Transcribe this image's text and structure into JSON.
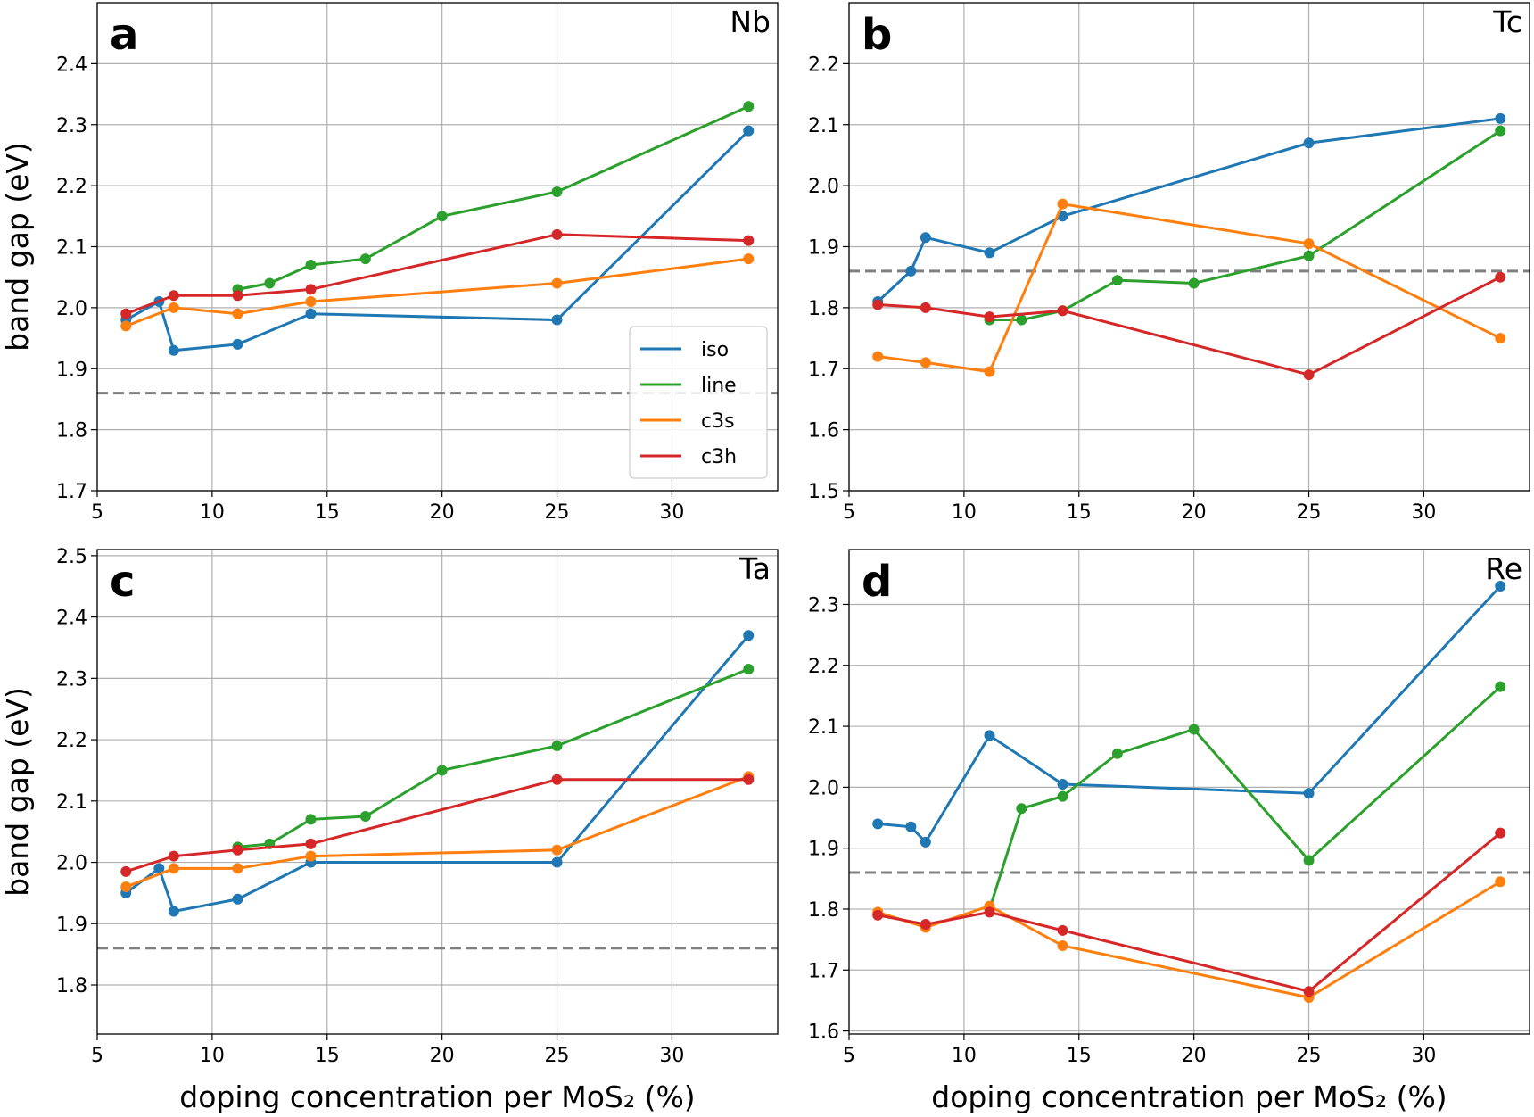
{
  "chart_data": [
    {
      "type": "line",
      "letter": "a",
      "element": "Nb",
      "ylabel": "band gap (eV)",
      "xlim": [
        5,
        34.6
      ],
      "xticks": [
        5,
        10,
        15,
        20,
        25,
        30
      ],
      "ylim": [
        1.7,
        2.5
      ],
      "yticks": [
        1.7,
        1.8,
        1.9,
        {
          "value": 2,
          "label": "2.0"
        },
        2.1,
        2.2,
        2.3,
        2.4
      ],
      "grid": true,
      "hline": 1.86,
      "legend": "lower right",
      "series": [
        {
          "name": "iso",
          "color": "#1f77b4",
          "x": [
            6.25,
            7.69,
            8.33,
            11.11,
            14.29,
            25,
            33.33
          ],
          "values": [
            1.98,
            2.01,
            1.93,
            1.94,
            1.99,
            1.98,
            2.29
          ]
        },
        {
          "name": "line",
          "color": "#2ca02c",
          "x": [
            11.11,
            12.5,
            14.29,
            16.67,
            20,
            25,
            33.33
          ],
          "values": [
            2.03,
            2.04,
            2.07,
            2.08,
            2.15,
            2.19,
            2.33
          ]
        },
        {
          "name": "c3s",
          "color": "#ff7f0e",
          "x": [
            6.25,
            8.33,
            11.11,
            14.29,
            25,
            33.33
          ],
          "values": [
            1.97,
            2.0,
            1.99,
            2.01,
            2.04,
            2.08
          ]
        },
        {
          "name": "c3h",
          "color": "#d62728",
          "x": [
            6.25,
            8.33,
            11.11,
            14.29,
            25,
            33.33
          ],
          "values": [
            1.99,
            2.02,
            2.02,
            2.03,
            2.12,
            2.11
          ]
        }
      ]
    },
    {
      "type": "line",
      "letter": "b",
      "element": "Tc",
      "xlim": [
        5,
        34.6
      ],
      "xticks": [
        5,
        10,
        15,
        20,
        25,
        30
      ],
      "ylim": [
        1.5,
        2.3
      ],
      "yticks": [
        1.5,
        1.6,
        1.7,
        1.8,
        1.9,
        {
          "value": 2,
          "label": "2.0"
        },
        2.1,
        2.2
      ],
      "grid": true,
      "hline": 1.86,
      "series": [
        {
          "color": "#1f77b4",
          "x": [
            6.25,
            7.69,
            8.33,
            11.11,
            14.29,
            25,
            33.33
          ],
          "values": [
            1.81,
            1.86,
            1.915,
            1.89,
            1.95,
            2.07,
            2.11
          ]
        },
        {
          "color": "#2ca02c",
          "x": [
            11.11,
            12.5,
            14.29,
            16.67,
            20,
            25,
            33.33
          ],
          "values": [
            1.78,
            1.78,
            1.795,
            1.845,
            1.84,
            1.885,
            2.09
          ]
        },
        {
          "color": "#ff7f0e",
          "x": [
            6.25,
            8.33,
            11.11,
            14.29,
            25,
            33.33
          ],
          "values": [
            1.72,
            1.71,
            1.695,
            1.97,
            1.905,
            1.75
          ]
        },
        {
          "color": "#d62728",
          "x": [
            6.25,
            8.33,
            11.11,
            14.29,
            25,
            33.33
          ],
          "values": [
            1.805,
            1.8,
            1.785,
            1.795,
            1.69,
            1.85
          ]
        }
      ]
    },
    {
      "type": "line",
      "letter": "c",
      "element": "Ta",
      "ylabel": "band gap (eV)",
      "xlabel": "doping concentration per MoS₂ (%)",
      "xlim": [
        5,
        34.6
      ],
      "xticks": [
        5,
        10,
        15,
        20,
        25,
        30
      ],
      "ylim": [
        1.72,
        2.51
      ],
      "yticks": [
        1.8,
        1.9,
        {
          "value": 2,
          "label": "2.0"
        },
        2.1,
        2.2,
        2.3,
        2.4,
        2.5
      ],
      "grid": true,
      "hline": 1.86,
      "series": [
        {
          "color": "#1f77b4",
          "x": [
            6.25,
            7.69,
            8.33,
            11.11,
            14.29,
            25,
            33.33
          ],
          "values": [
            1.95,
            1.99,
            1.92,
            1.94,
            2.0,
            2.0,
            2.37
          ]
        },
        {
          "color": "#2ca02c",
          "x": [
            11.11,
            12.5,
            14.29,
            16.67,
            20,
            25,
            33.33
          ],
          "values": [
            2.025,
            2.03,
            2.07,
            2.075,
            2.15,
            2.19,
            2.315
          ]
        },
        {
          "color": "#ff7f0e",
          "x": [
            6.25,
            8.33,
            11.11,
            14.29,
            25,
            33.33
          ],
          "values": [
            1.96,
            1.99,
            1.99,
            2.01,
            2.02,
            2.14
          ]
        },
        {
          "color": "#d62728",
          "x": [
            6.25,
            8.33,
            11.11,
            14.29,
            25,
            33.33
          ],
          "values": [
            1.985,
            2.01,
            2.02,
            2.03,
            2.135,
            2.135
          ]
        }
      ]
    },
    {
      "type": "line",
      "letter": "d",
      "element": "Re",
      "xlabel": "doping concentration per MoS₂ (%)",
      "xlim": [
        5,
        34.6
      ],
      "xticks": [
        5,
        10,
        15,
        20,
        25,
        30
      ],
      "ylim": [
        1.595,
        2.39
      ],
      "yticks": [
        1.6,
        1.7,
        1.8,
        1.9,
        {
          "value": 2,
          "label": "2.0"
        },
        2.1,
        2.2,
        2.3
      ],
      "grid": true,
      "hline": 1.86,
      "series": [
        {
          "color": "#1f77b4",
          "x": [
            6.25,
            7.69,
            8.33,
            11.11,
            14.29,
            25,
            33.33
          ],
          "values": [
            1.94,
            1.935,
            1.91,
            2.085,
            2.005,
            1.99,
            2.33
          ]
        },
        {
          "color": "#2ca02c",
          "x": [
            11.11,
            12.5,
            14.29,
            16.67,
            20,
            25,
            33.33
          ],
          "values": [
            1.8,
            1.965,
            1.985,
            2.055,
            2.095,
            1.88,
            2.165
          ]
        },
        {
          "color": "#ff7f0e",
          "x": [
            6.25,
            8.33,
            11.11,
            14.29,
            25,
            33.33
          ],
          "values": [
            1.795,
            1.77,
            1.805,
            1.74,
            1.655,
            1.845
          ]
        },
        {
          "color": "#d62728",
          "x": [
            6.25,
            8.33,
            11.11,
            14.29,
            25,
            33.33
          ],
          "values": [
            1.79,
            1.775,
            1.795,
            1.765,
            1.665,
            1.925
          ]
        }
      ]
    }
  ]
}
